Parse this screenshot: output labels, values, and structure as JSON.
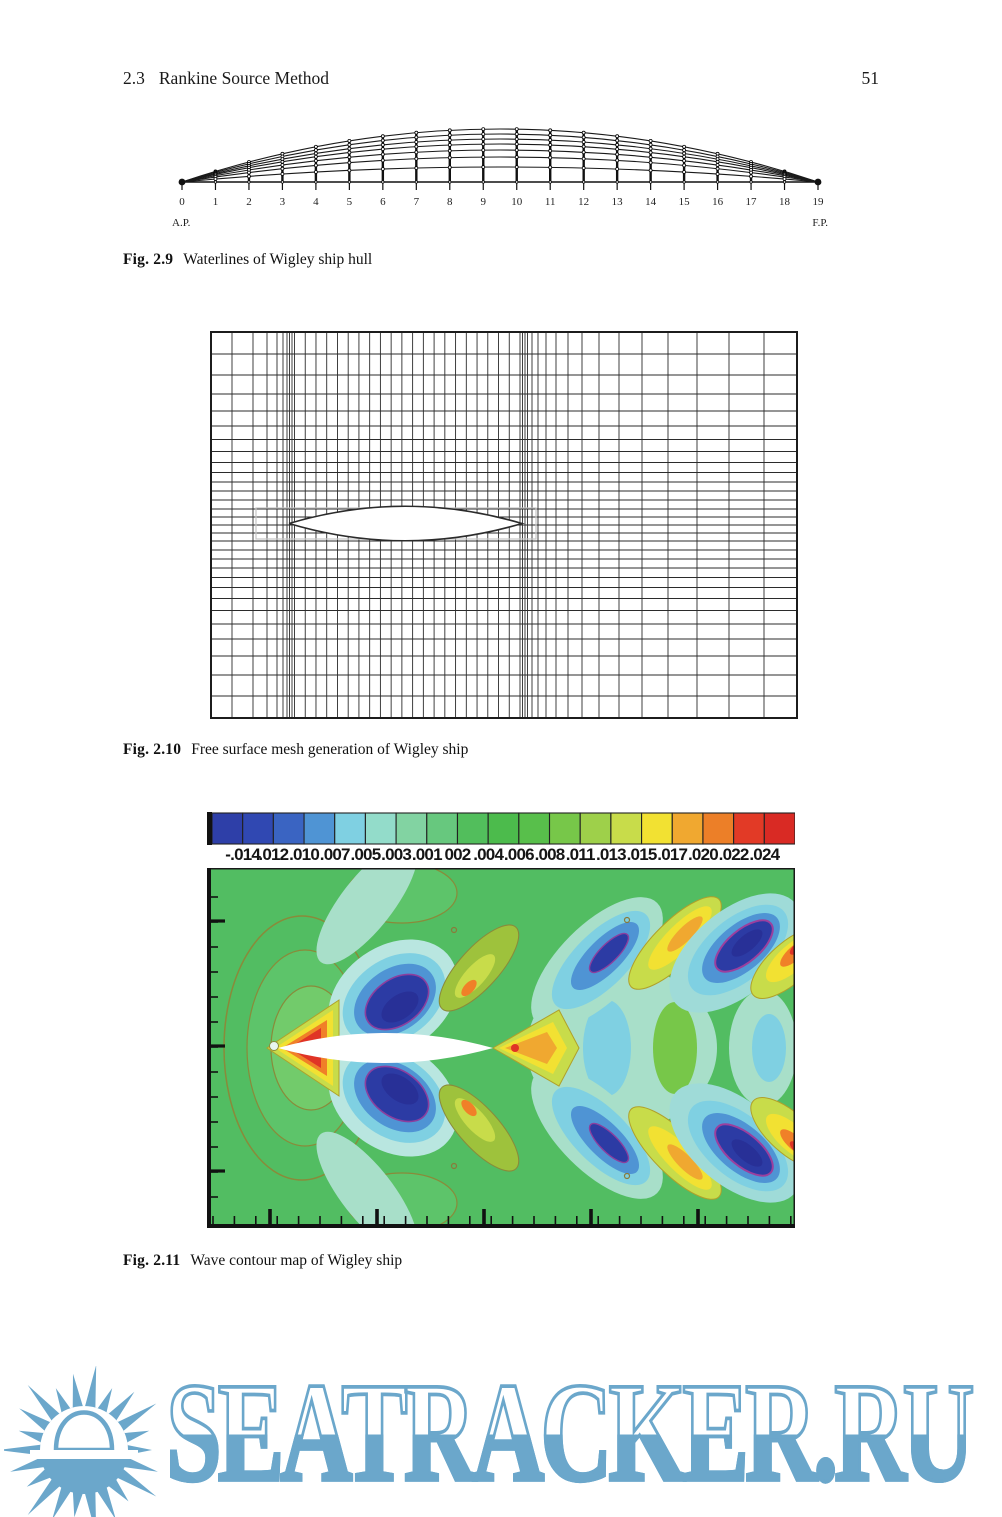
{
  "header": {
    "section": "2.3",
    "title": "Rankine Source Method",
    "page_number": "51"
  },
  "fig_2_9": {
    "label": "Fig. 2.9",
    "caption": "Waterlines of Wigley ship hull",
    "station_labels": [
      "0",
      "1",
      "2",
      "3",
      "4",
      "5",
      "6",
      "7",
      "8",
      "9",
      "10",
      "11",
      "12",
      "13",
      "14",
      "15",
      "16",
      "17",
      "18",
      "19"
    ],
    "aft_perpendicular_label": "A.P.",
    "forward_perpendicular_label": "F.P."
  },
  "fig_2_10": {
    "label": "Fig. 2.10",
    "caption": "Free surface mesh generation of Wigley ship"
  },
  "fig_2_11": {
    "label": "Fig. 2.11",
    "caption": "Wave contour map of Wigley ship"
  },
  "chart_data": {
    "type": "heatmap",
    "title": "Wave contour map of Wigley ship",
    "legend_position": "top",
    "colorbar_levels": [
      -0.014,
      -0.012,
      -0.01,
      -0.007,
      -0.005,
      -0.003,
      -0.001,
      0.002,
      0.004,
      0.006,
      0.008,
      0.011,
      0.013,
      0.015,
      0.017,
      0.02,
      0.022,
      0.024
    ],
    "colorbar_labels_as_shown": [
      "-.014",
      ".012",
      ".010",
      ".007",
      ".005",
      ".003",
      ".001",
      "002",
      ".004",
      ".006",
      ".008",
      ".011",
      ".013",
      ".015",
      ".017",
      ".020",
      ".022",
      ".024"
    ],
    "colorbar_colors": [
      "#2e3fa8",
      "#3048b2",
      "#3a64c2",
      "#4f94d4",
      "#7fd0e2",
      "#93dcca",
      "#82d3a2",
      "#67c87e",
      "#52be5c",
      "#4cbb4c",
      "#58bf4b",
      "#77c749",
      "#9ed04a",
      "#c8dc4a",
      "#f2e132",
      "#f0a830",
      "#ec7f28",
      "#e23a26",
      "#d92a24"
    ],
    "x_axis_tick_labels": [],
    "y_axis_tick_labels": []
  },
  "watermark": {
    "text": "SEATRACKER.RU",
    "color": "#6ba7cb"
  }
}
